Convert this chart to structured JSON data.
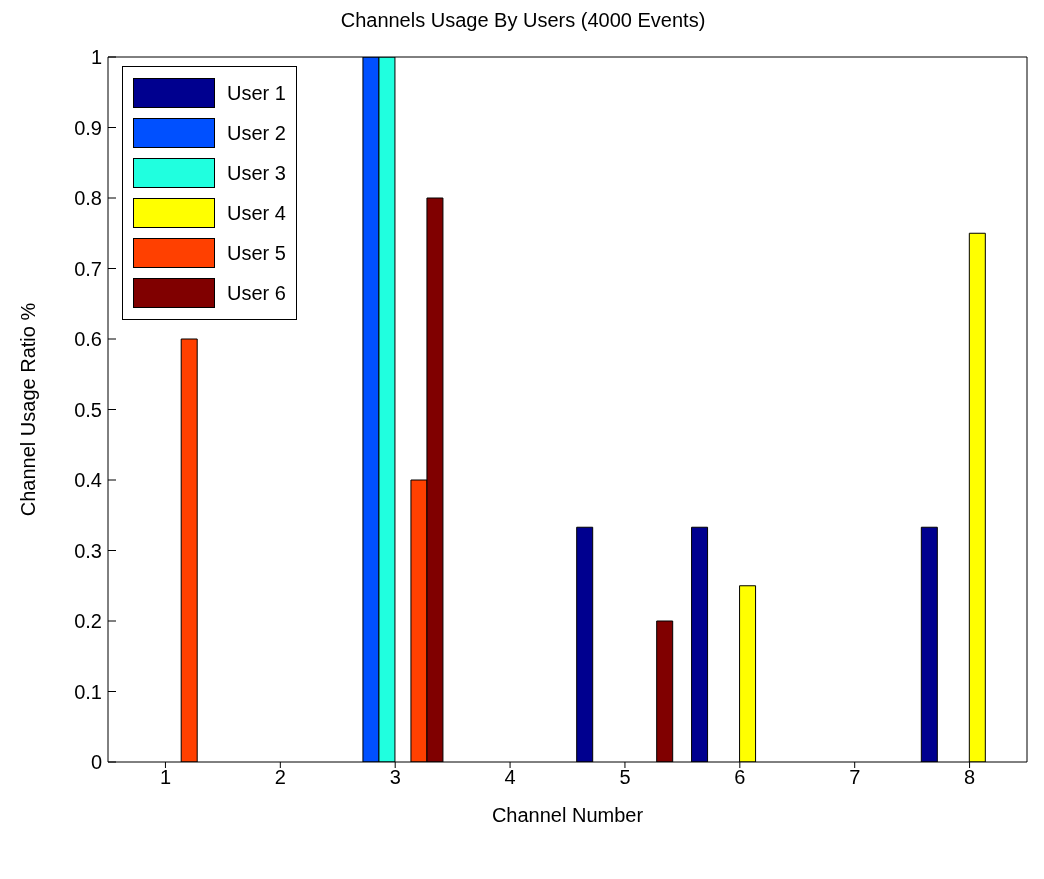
{
  "chart_data": {
    "type": "bar",
    "title": "Channels Usage By Users (4000 Events)",
    "xlabel": "Channel Number",
    "ylabel": "Channel Usage Ratio %",
    "categories": [
      "1",
      "2",
      "3",
      "4",
      "5",
      "6",
      "7",
      "8"
    ],
    "series": [
      {
        "name": "User 1",
        "color": "#00008f",
        "values": [
          0,
          0,
          0,
          0,
          0.333,
          0.333,
          0,
          0.333
        ]
      },
      {
        "name": "User 2",
        "color": "#0050ff",
        "values": [
          0,
          0,
          1,
          0,
          0,
          0,
          0,
          0
        ]
      },
      {
        "name": "User 3",
        "color": "#20ffdf",
        "values": [
          0,
          0,
          1,
          0,
          0,
          0,
          0,
          0
        ]
      },
      {
        "name": "User 4",
        "color": "#ffff00",
        "values": [
          0,
          0,
          0,
          0,
          0,
          0.25,
          0,
          0.75
        ]
      },
      {
        "name": "User 5",
        "color": "#ff4000",
        "values": [
          0.6,
          0,
          0.4,
          0,
          0,
          0,
          0,
          0
        ]
      },
      {
        "name": "User 6",
        "color": "#800000",
        "values": [
          0,
          0,
          0.8,
          0,
          0.2,
          0,
          0,
          0
        ]
      }
    ],
    "ylim": [
      0,
      1
    ],
    "yticks": [
      0,
      0.1,
      0.2,
      0.3,
      0.4,
      0.5,
      0.6,
      0.7,
      0.8,
      0.9,
      1
    ],
    "grid": false,
    "legend": "top left"
  }
}
